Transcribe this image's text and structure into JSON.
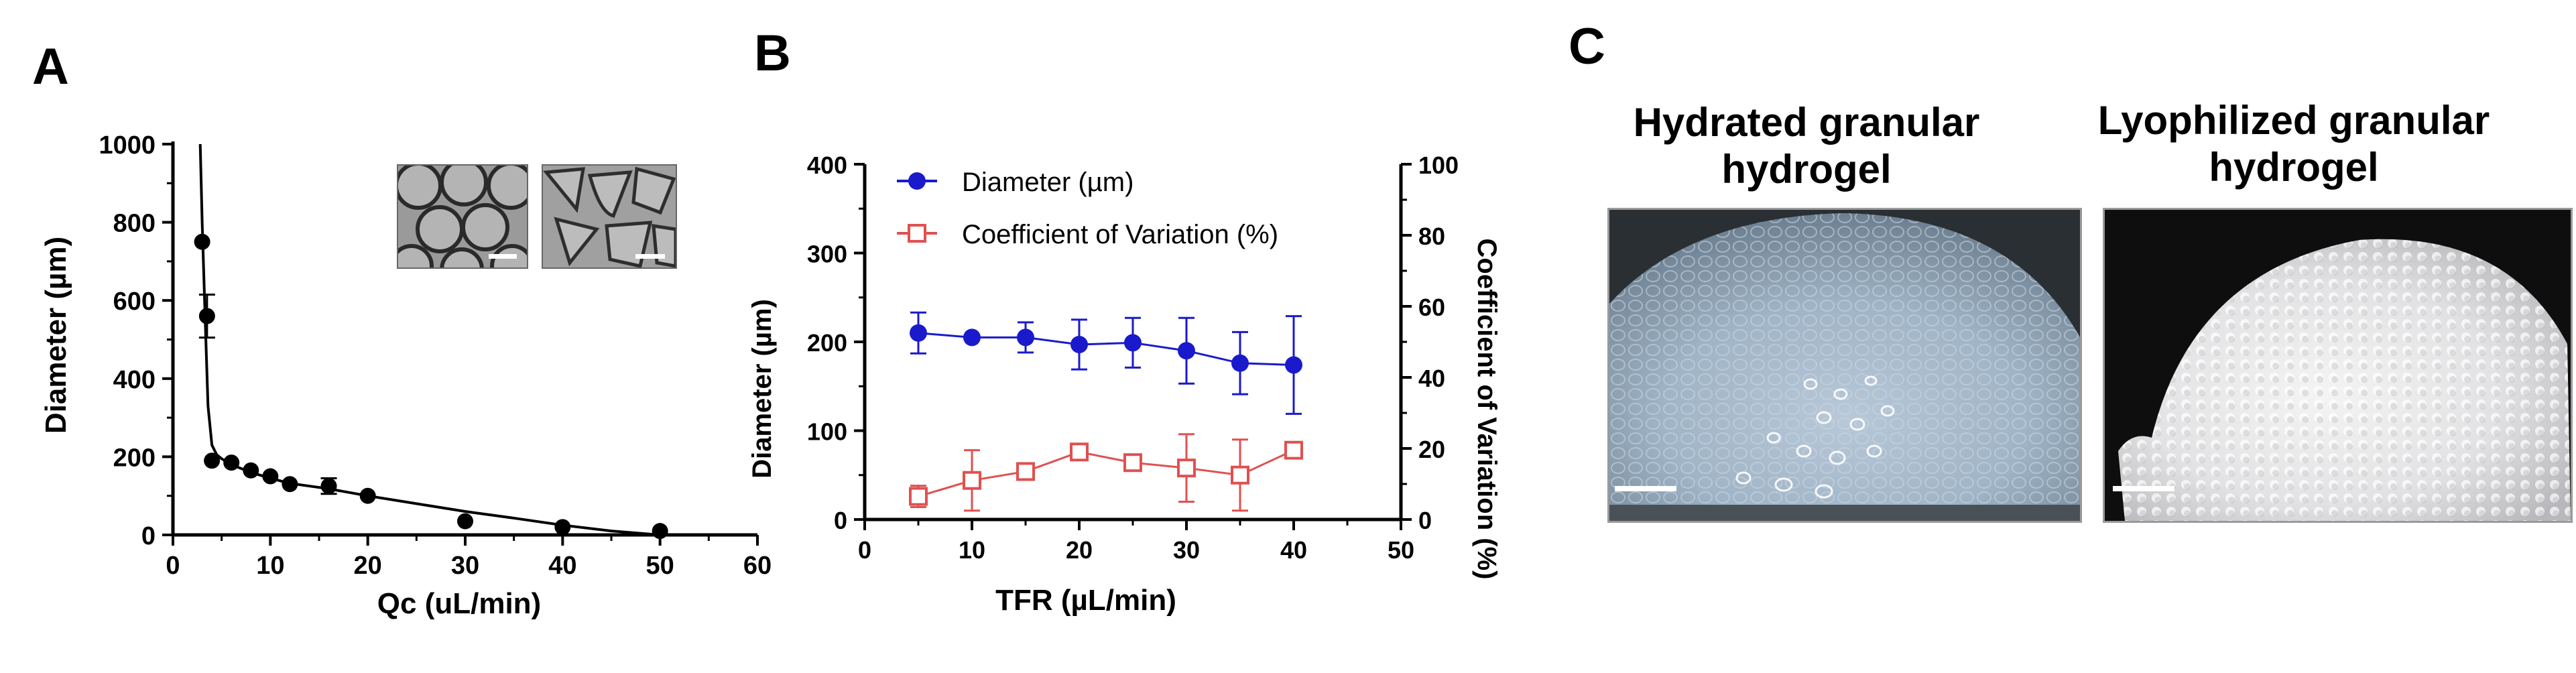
{
  "panels": {
    "a_label": "A",
    "b_label": "B",
    "c_label": "C"
  },
  "colors": {
    "diameter_series": "#1a1acc",
    "cv_series": "#e05050",
    "black": "#000000"
  },
  "chart_data": [
    {
      "panel": "A",
      "type": "scatter",
      "xlabel": "Qc (uL/min)",
      "ylabel": "Diameter (µm)",
      "xlim": [
        0,
        60
      ],
      "ylim": [
        0,
        1000
      ],
      "xticks": [
        0,
        10,
        20,
        30,
        40,
        50,
        60
      ],
      "yticks": [
        0,
        200,
        400,
        600,
        800,
        1000
      ],
      "series": [
        {
          "marker": "filled-circle",
          "x": [
            3,
            3.5,
            4,
            6,
            8,
            10,
            12,
            16,
            20,
            30,
            40,
            50
          ],
          "y": [
            750,
            560,
            190,
            185,
            165,
            150,
            130,
            125,
            100,
            35,
            20,
            10
          ],
          "error": [
            0,
            55,
            0,
            0,
            0,
            0,
            0,
            20,
            0,
            0,
            0,
            0
          ]
        }
      ],
      "fit_curve": {
        "x": [
          2.8,
          3.0,
          3.3,
          3.6,
          4.0,
          4.5,
          5,
          6,
          8,
          10,
          12,
          16,
          20,
          25,
          30,
          35,
          40,
          45,
          50
        ],
        "y": [
          1000,
          800,
          560,
          330,
          230,
          205,
          195,
          180,
          160,
          145,
          132,
          118,
          100,
          80,
          60,
          43,
          25,
          10,
          0
        ]
      }
    },
    {
      "panel": "B",
      "type": "line",
      "xlabel": "TFR (µL/min)",
      "ylabel": "Diameter (µm)",
      "y2label": "Coefficient of Variation (%)",
      "xlim": [
        0,
        50
      ],
      "ylim": [
        0,
        400
      ],
      "y2lim": [
        0,
        100
      ],
      "xticks": [
        0,
        10,
        20,
        30,
        40,
        50
      ],
      "yticks": [
        0,
        100,
        200,
        300,
        400
      ],
      "y2ticks": [
        0,
        20,
        40,
        60,
        80,
        100
      ],
      "legend_position": "top-left",
      "x": [
        5,
        10,
        15,
        20,
        25,
        30,
        35,
        40
      ],
      "series": [
        {
          "name": "Diameter (µm)",
          "axis": "left",
          "marker": "filled-circle",
          "values": [
            210,
            205,
            205,
            197,
            199,
            190,
            176,
            174
          ],
          "error": [
            23,
            0,
            17,
            28,
            28,
            37,
            35,
            55
          ]
        },
        {
          "name": "Coefficient of Variation (%)",
          "axis": "right",
          "marker": "open-square",
          "values": [
            6.5,
            11,
            13.5,
            19,
            16,
            14.5,
            12.5,
            19.5
          ],
          "error": [
            3,
            8.5,
            0,
            0,
            0,
            9.5,
            10,
            0
          ]
        }
      ]
    }
  ],
  "panel_c": {
    "hydrated_title_line1": "Hydrated granular",
    "hydrated_title_line2": "hydrogel",
    "lyophilized_title_line1": "Lyophilized granular",
    "lyophilized_title_line2": "hydrogel"
  }
}
